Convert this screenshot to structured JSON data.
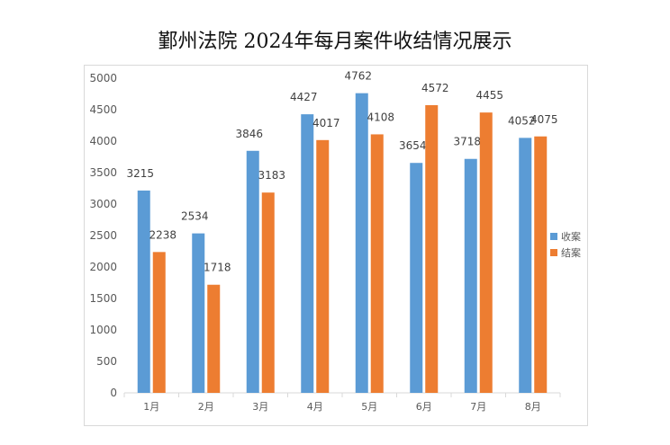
{
  "chart_data": {
    "type": "bar",
    "title": "鄞州法院 2024年每月案件收结情况展示",
    "xlabel": "",
    "ylabel": "",
    "categories": [
      "1月",
      "2月",
      "3月",
      "4月",
      "5月",
      "6月",
      "7月",
      "8月"
    ],
    "series": [
      {
        "name": "收案",
        "color": "#5b9bd5",
        "values": [
          3215,
          2534,
          3846,
          4427,
          4762,
          3654,
          3718,
          4052
        ]
      },
      {
        "name": "结案",
        "color": "#ed7d31",
        "values": [
          2238,
          1718,
          3183,
          4017,
          4108,
          4572,
          4455,
          4075
        ]
      }
    ],
    "ylim": [
      0,
      5000
    ],
    "yticks": [
      0,
      500,
      1000,
      1500,
      2000,
      2500,
      3000,
      3500,
      4000,
      4500,
      5000
    ],
    "grid": false,
    "legend_position": "right"
  }
}
